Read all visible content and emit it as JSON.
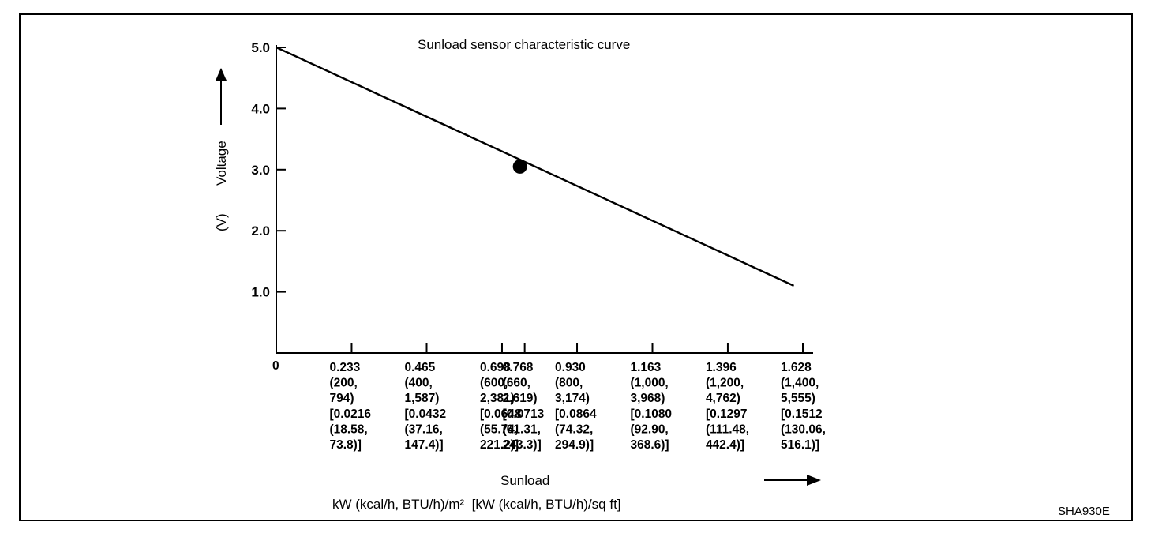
{
  "chart_data": {
    "type": "line",
    "title": "Sunload sensor characteristic curve",
    "ylabel": "Voltage",
    "yunit": "(V)",
    "xlabel": "Sunload",
    "xunit": "kW (kcal/h, BTU/h)/m²  [kW (kcal/h, BTU/h)/sq ft]",
    "figure_code": "SHA930E",
    "ylim": [
      0,
      5.0
    ],
    "xlim": [
      0,
      1.628
    ],
    "y_ticks": [
      {
        "value": 1.0,
        "label": "1.0"
      },
      {
        "value": 2.0,
        "label": "2.0"
      },
      {
        "value": 3.0,
        "label": "3.0"
      },
      {
        "value": 4.0,
        "label": "4.0"
      },
      {
        "value": 5.0,
        "label": "5.0"
      }
    ],
    "x_origin_label": "0",
    "x_ticks": [
      {
        "value": 0.233,
        "lines": [
          "0.233",
          "(200,",
          "794)",
          "[0.0216",
          "(18.58,",
          "73.8)]"
        ]
      },
      {
        "value": 0.465,
        "lines": [
          "0.465",
          "(400,",
          "1,587)",
          "[0.0432",
          "(37.16,",
          "147.4)]"
        ]
      },
      {
        "value": 0.698,
        "lines": [
          "0.698",
          "(600,",
          "2,381)",
          "[0.0648",
          "(55.74,",
          "221.2)]"
        ]
      },
      {
        "value": 0.768,
        "lines": [
          "0.768",
          "(660,",
          "2,619)",
          "[0.0713",
          "(61.31,",
          "243.3)]"
        ]
      },
      {
        "value": 0.93,
        "lines": [
          "0.930",
          "(800,",
          "3,174)",
          "[0.0864",
          "(74.32,",
          "294.9)]"
        ]
      },
      {
        "value": 1.163,
        "lines": [
          "1.163",
          "(1,000,",
          "3,968)",
          "[0.1080",
          "(92.90,",
          "368.6)]"
        ]
      },
      {
        "value": 1.396,
        "lines": [
          "1.396",
          "(1,200,",
          "4,762)",
          "[0.1297",
          "(111.48,",
          "442.4)]"
        ]
      },
      {
        "value": 1.628,
        "lines": [
          "1.628",
          "(1,400,",
          "5,555)",
          "[0.1512",
          "(130.06,",
          "516.1)]"
        ]
      }
    ],
    "series": [
      {
        "x": [
          0,
          1.6
        ],
        "y": [
          5.0,
          1.1
        ]
      }
    ],
    "marker_point": {
      "x": 0.768,
      "y": 3.05
    },
    "grid": false,
    "legend": "none"
  }
}
